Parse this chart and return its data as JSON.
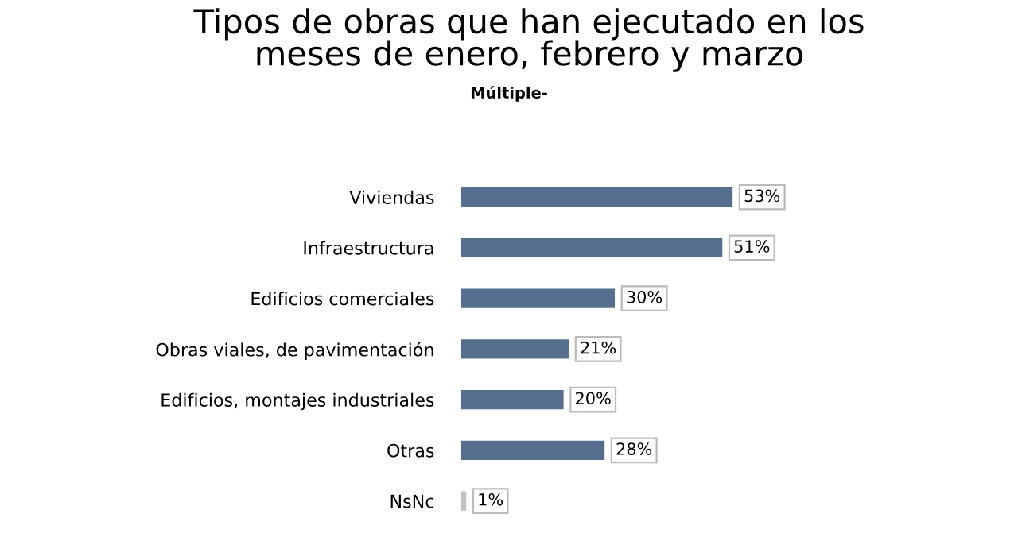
{
  "chart_data": {
    "type": "bar",
    "orientation": "horizontal",
    "title": "Tipos de obras que han ejecutado en los\nmeses de enero, febrero y marzo",
    "subtitle": "Múltiple-",
    "categories": [
      "Viviendas",
      "Infraestructura",
      "Edificios comerciales",
      "Obras viales, de pavimentación",
      "Edificios, montajes industriales",
      "Otras",
      "NsNc"
    ],
    "values": [
      53,
      51,
      30,
      21,
      20,
      28,
      1
    ],
    "value_labels": [
      "53%",
      "51%",
      "30%",
      "21%",
      "20%",
      "28%",
      "1%"
    ],
    "colors": [
      "#566f8e",
      "#566f8e",
      "#566f8e",
      "#566f8e",
      "#566f8e",
      "#566f8e",
      "#c0c0c0"
    ],
    "tick_labels": "y",
    "grid": false,
    "legend": false
  }
}
